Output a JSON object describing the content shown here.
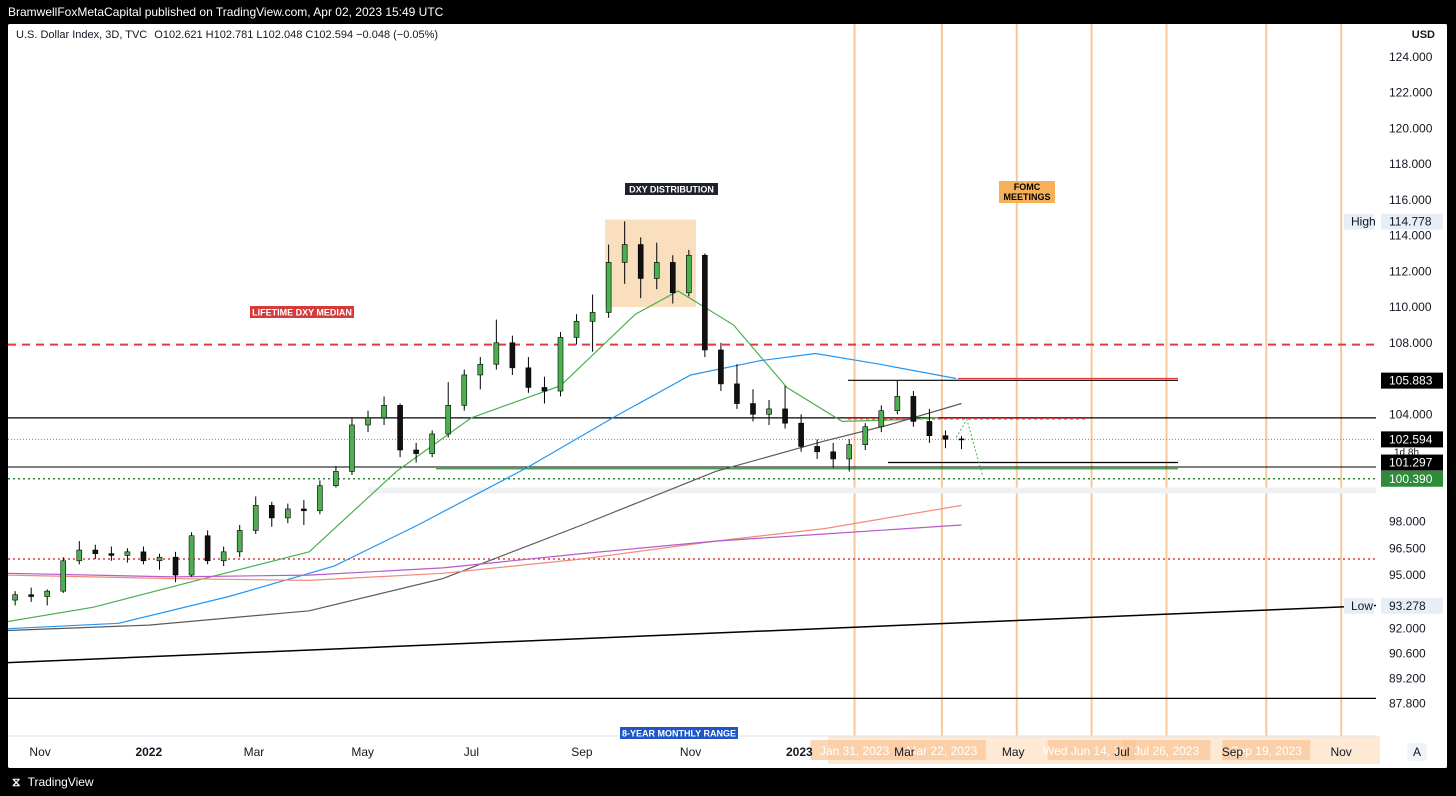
{
  "header": {
    "published": "BramwellFoxMetaCapital published on TradingView.com, Apr 02, 2023 15:49 UTC"
  },
  "legend": {
    "symbol": "U.S. Dollar Index, 3D, TVC",
    "ohlc": "O102.621  H102.781  L102.048  C102.594  −0.048 (−0.05%)"
  },
  "footer": {
    "brand": "TradingView"
  },
  "chart_data": {
    "type": "candlestick",
    "currency": "USD",
    "ylim": [
      87.0,
      124.5
    ],
    "y_ticks": [
      "124.000",
      "122.000",
      "120.000",
      "118.000",
      "116.000",
      "114.000",
      "112.000",
      "110.000",
      "108.000",
      "104.000",
      "98.000",
      "96.500",
      "95.000",
      "92.000",
      "90.600",
      "89.200",
      "87.800"
    ],
    "x_ticks": [
      {
        "label": "Nov",
        "bold": false,
        "x": "2021-11-01"
      },
      {
        "label": "2022",
        "bold": true,
        "x": "2022-01-01"
      },
      {
        "label": "Mar",
        "bold": false,
        "x": "2022-03-01"
      },
      {
        "label": "May",
        "bold": false,
        "x": "2022-05-01"
      },
      {
        "label": "Jul",
        "bold": false,
        "x": "2022-07-01"
      },
      {
        "label": "Sep",
        "bold": false,
        "x": "2022-09-01"
      },
      {
        "label": "Nov",
        "bold": false,
        "x": "2022-11-01"
      },
      {
        "label": "2023",
        "bold": true,
        "x": "2023-01-01"
      },
      {
        "label": "Mar",
        "bold": false,
        "x": "2023-03-01"
      },
      {
        "label": "May",
        "bold": false,
        "x": "2023-05-01"
      },
      {
        "label": "Jul",
        "bold": false,
        "x": "2023-07-01"
      },
      {
        "label": "Sep",
        "bold": false,
        "x": "2023-09-01"
      },
      {
        "label": "Nov",
        "bold": false,
        "x": "2023-11-01"
      }
    ],
    "fomc_dates": [
      "Jan 31, 2023",
      "Mar 22, 2023",
      "Wed Jun 14, 2023",
      "Jul 26, 2023",
      "Sep 19, 2023"
    ],
    "fomc_meetings": [
      "2023-02-01",
      "2023-03-22",
      "2023-05-03",
      "2023-06-14",
      "2023-07-26",
      "2023-09-20",
      "2023-11-01"
    ],
    "price_labels": [
      {
        "label": "105.883",
        "value": 105.883,
        "style": "dark"
      },
      {
        "label": "102.594",
        "value": 102.594,
        "style": "dark"
      },
      {
        "label": "1d 8h",
        "value": 102.594,
        "style": "timer"
      },
      {
        "label": "101.297",
        "value": 101.297,
        "style": "dark"
      },
      {
        "label": "100.390",
        "value": 100.39,
        "style": "green"
      },
      {
        "label": "114.778",
        "value": 114.778,
        "style": "high",
        "tag": "High"
      },
      {
        "label": "93.278",
        "value": 93.278,
        "style": "low",
        "tag": "Low"
      }
    ],
    "annotations": [
      {
        "text": "DXY DISTRIBUTION",
        "style": "dark"
      },
      {
        "text": "LIFETIME DXY MEDIAN",
        "style": "red"
      },
      {
        "text": "FOMC MEETINGS",
        "style": "orange"
      },
      {
        "text": "8-YEAR MONTHLY RANGE",
        "style": "blue"
      }
    ],
    "levels": {
      "lifetime_median": 107.9,
      "resistance": 103.8,
      "last_price": 102.594,
      "support_green": 100.39,
      "red_dotted": 95.9,
      "range_bottom": 88.1,
      "high": 114.778,
      "low": 93.278
    },
    "candles": [
      {
        "t": "2021-10-18",
        "o": 93.6,
        "h": 94.1,
        "l": 93.3,
        "c": 93.9
      },
      {
        "t": "2021-10-27",
        "o": 93.9,
        "h": 94.3,
        "l": 93.5,
        "c": 93.8
      },
      {
        "t": "2021-11-05",
        "o": 93.8,
        "h": 94.2,
        "l": 93.3,
        "c": 94.1
      },
      {
        "t": "2021-11-14",
        "o": 94.1,
        "h": 96.0,
        "l": 94.0,
        "c": 95.8
      },
      {
        "t": "2021-11-23",
        "o": 95.8,
        "h": 96.9,
        "l": 95.6,
        "c": 96.4
      },
      {
        "t": "2021-12-02",
        "o": 96.4,
        "h": 96.7,
        "l": 95.9,
        "c": 96.2
      },
      {
        "t": "2021-12-11",
        "o": 96.2,
        "h": 96.6,
        "l": 95.8,
        "c": 96.1
      },
      {
        "t": "2021-12-20",
        "o": 96.1,
        "h": 96.5,
        "l": 95.7,
        "c": 96.3
      },
      {
        "t": "2021-12-29",
        "o": 96.3,
        "h": 96.6,
        "l": 95.6,
        "c": 95.8
      },
      {
        "t": "2022-01-07",
        "o": 95.8,
        "h": 96.2,
        "l": 95.3,
        "c": 96.0
      },
      {
        "t": "2022-01-16",
        "o": 96.0,
        "h": 96.3,
        "l": 94.6,
        "c": 95.0
      },
      {
        "t": "2022-01-25",
        "o": 95.0,
        "h": 97.4,
        "l": 94.9,
        "c": 97.2
      },
      {
        "t": "2022-02-03",
        "o": 97.2,
        "h": 97.5,
        "l": 95.6,
        "c": 95.8
      },
      {
        "t": "2022-02-12",
        "o": 95.8,
        "h": 96.6,
        "l": 95.5,
        "c": 96.3
      },
      {
        "t": "2022-02-21",
        "o": 96.3,
        "h": 97.8,
        "l": 96.0,
        "c": 97.5
      },
      {
        "t": "2022-03-02",
        "o": 97.5,
        "h": 99.4,
        "l": 97.3,
        "c": 98.9
      },
      {
        "t": "2022-03-11",
        "o": 98.9,
        "h": 99.1,
        "l": 97.7,
        "c": 98.2
      },
      {
        "t": "2022-03-20",
        "o": 98.2,
        "h": 99.0,
        "l": 97.9,
        "c": 98.7
      },
      {
        "t": "2022-03-29",
        "o": 98.7,
        "h": 99.2,
        "l": 97.8,
        "c": 98.6
      },
      {
        "t": "2022-04-07",
        "o": 98.6,
        "h": 100.3,
        "l": 98.4,
        "c": 100.0
      },
      {
        "t": "2022-04-16",
        "o": 100.0,
        "h": 101.1,
        "l": 99.9,
        "c": 100.8
      },
      {
        "t": "2022-04-25",
        "o": 100.8,
        "h": 103.8,
        "l": 100.6,
        "c": 103.4
      },
      {
        "t": "2022-05-04",
        "o": 103.4,
        "h": 104.2,
        "l": 103.0,
        "c": 103.8
      },
      {
        "t": "2022-05-13",
        "o": 103.8,
        "h": 105.0,
        "l": 103.4,
        "c": 104.5
      },
      {
        "t": "2022-05-22",
        "o": 104.5,
        "h": 104.6,
        "l": 101.6,
        "c": 102.0
      },
      {
        "t": "2022-05-31",
        "o": 102.0,
        "h": 102.4,
        "l": 101.3,
        "c": 101.8
      },
      {
        "t": "2022-06-09",
        "o": 101.8,
        "h": 103.1,
        "l": 101.6,
        "c": 102.9
      },
      {
        "t": "2022-06-18",
        "o": 102.9,
        "h": 105.8,
        "l": 102.7,
        "c": 104.5
      },
      {
        "t": "2022-06-27",
        "o": 104.5,
        "h": 106.5,
        "l": 104.2,
        "c": 106.2
      },
      {
        "t": "2022-07-06",
        "o": 106.2,
        "h": 107.2,
        "l": 105.4,
        "c": 106.8
      },
      {
        "t": "2022-07-15",
        "o": 106.8,
        "h": 109.3,
        "l": 106.5,
        "c": 108.0
      },
      {
        "t": "2022-07-24",
        "o": 108.0,
        "h": 108.4,
        "l": 106.2,
        "c": 106.6
      },
      {
        "t": "2022-08-02",
        "o": 106.6,
        "h": 107.2,
        "l": 105.2,
        "c": 105.5
      },
      {
        "t": "2022-08-11",
        "o": 105.5,
        "h": 106.1,
        "l": 104.6,
        "c": 105.3
      },
      {
        "t": "2022-08-20",
        "o": 105.3,
        "h": 108.6,
        "l": 105.0,
        "c": 108.3
      },
      {
        "t": "2022-08-29",
        "o": 108.3,
        "h": 109.6,
        "l": 107.9,
        "c": 109.2
      },
      {
        "t": "2022-09-07",
        "o": 109.2,
        "h": 110.7,
        "l": 107.5,
        "c": 109.7
      },
      {
        "t": "2022-09-16",
        "o": 109.7,
        "h": 113.5,
        "l": 109.4,
        "c": 112.5
      },
      {
        "t": "2022-09-25",
        "o": 112.5,
        "h": 114.8,
        "l": 111.3,
        "c": 113.5
      },
      {
        "t": "2022-10-04",
        "o": 113.5,
        "h": 113.9,
        "l": 110.5,
        "c": 111.6
      },
      {
        "t": "2022-10-13",
        "o": 111.6,
        "h": 113.6,
        "l": 111.0,
        "c": 112.5
      },
      {
        "t": "2022-10-22",
        "o": 112.5,
        "h": 112.9,
        "l": 110.2,
        "c": 110.8
      },
      {
        "t": "2022-10-31",
        "o": 110.8,
        "h": 113.2,
        "l": 110.6,
        "c": 112.9
      },
      {
        "t": "2022-11-09",
        "o": 112.9,
        "h": 113.0,
        "l": 107.2,
        "c": 107.6
      },
      {
        "t": "2022-11-18",
        "o": 107.6,
        "h": 108.0,
        "l": 105.3,
        "c": 105.7
      },
      {
        "t": "2022-11-27",
        "o": 105.7,
        "h": 106.8,
        "l": 104.3,
        "c": 104.6
      },
      {
        "t": "2022-12-06",
        "o": 104.6,
        "h": 105.4,
        "l": 103.6,
        "c": 104.0
      },
      {
        "t": "2022-12-15",
        "o": 104.0,
        "h": 104.8,
        "l": 103.4,
        "c": 104.3
      },
      {
        "t": "2022-12-24",
        "o": 104.3,
        "h": 105.6,
        "l": 103.2,
        "c": 103.5
      },
      {
        "t": "2023-01-02",
        "o": 103.5,
        "h": 104.0,
        "l": 101.9,
        "c": 102.2
      },
      {
        "t": "2023-01-11",
        "o": 102.2,
        "h": 102.6,
        "l": 101.5,
        "c": 101.9
      },
      {
        "t": "2023-01-20",
        "o": 101.9,
        "h": 102.4,
        "l": 101.0,
        "c": 101.5
      },
      {
        "t": "2023-01-29",
        "o": 101.5,
        "h": 102.6,
        "l": 100.8,
        "c": 102.3
      },
      {
        "t": "2023-02-07",
        "o": 102.3,
        "h": 103.5,
        "l": 102.0,
        "c": 103.3
      },
      {
        "t": "2023-02-16",
        "o": 103.3,
        "h": 104.5,
        "l": 103.0,
        "c": 104.2
      },
      {
        "t": "2023-02-25",
        "o": 104.2,
        "h": 105.9,
        "l": 104.0,
        "c": 105.0
      },
      {
        "t": "2023-03-06",
        "o": 105.0,
        "h": 105.3,
        "l": 103.3,
        "c": 103.6
      },
      {
        "t": "2023-03-15",
        "o": 103.6,
        "h": 104.3,
        "l": 102.4,
        "c": 102.8
      },
      {
        "t": "2023-03-24",
        "o": 102.8,
        "h": 103.1,
        "l": 102.1,
        "c": 102.6
      },
      {
        "t": "2023-04-02",
        "o": 102.621,
        "h": 102.781,
        "l": 102.048,
        "c": 102.594
      }
    ]
  }
}
